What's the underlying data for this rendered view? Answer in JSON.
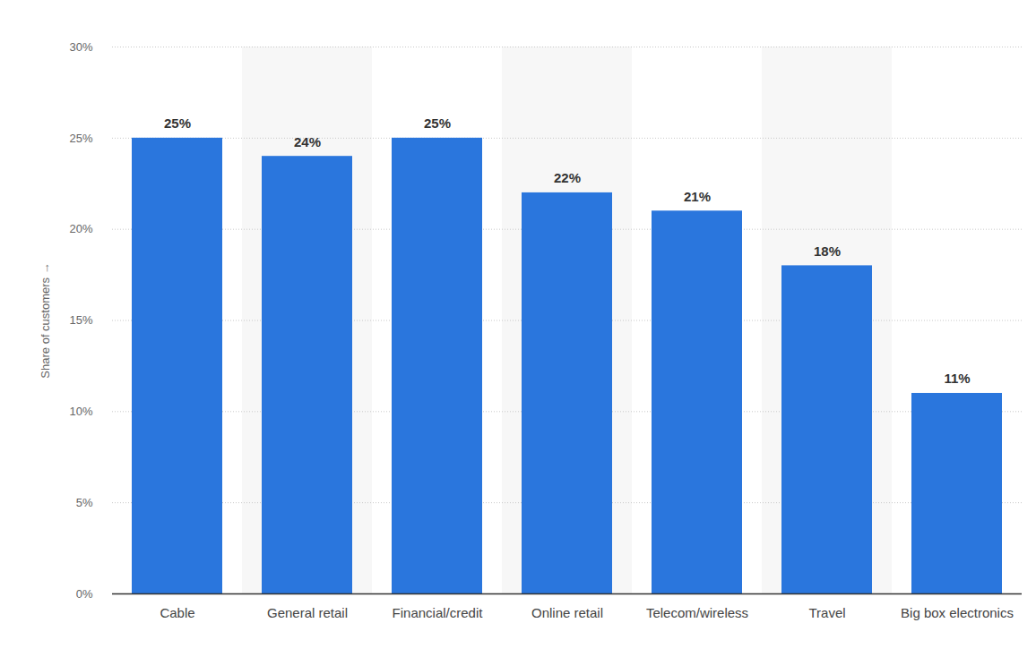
{
  "chart_data": {
    "type": "bar",
    "y_label": "Share of customers",
    "categories": [
      "Cable",
      "General retail",
      "Financial/credit",
      "Online retail",
      "Telecom/wireless",
      "Travel",
      "Big box electronics"
    ],
    "values": [
      25,
      24,
      25,
      22,
      21,
      18,
      11
    ],
    "value_labels": [
      "25%",
      "24%",
      "25%",
      "22%",
      "21%",
      "18%",
      "11%"
    ],
    "color": "#2a76dd",
    "ylim": [
      0,
      30
    ],
    "yticks": [
      {
        "value": 0,
        "label": "0%"
      },
      {
        "value": 5,
        "label": "5%"
      },
      {
        "value": 10,
        "label": "10%"
      },
      {
        "value": 15,
        "label": "15%"
      },
      {
        "value": 20,
        "label": "20%"
      },
      {
        "value": 25,
        "label": "25%"
      },
      {
        "value": 30,
        "label": "30%"
      }
    ],
    "grid": true,
    "data_labels": true
  }
}
